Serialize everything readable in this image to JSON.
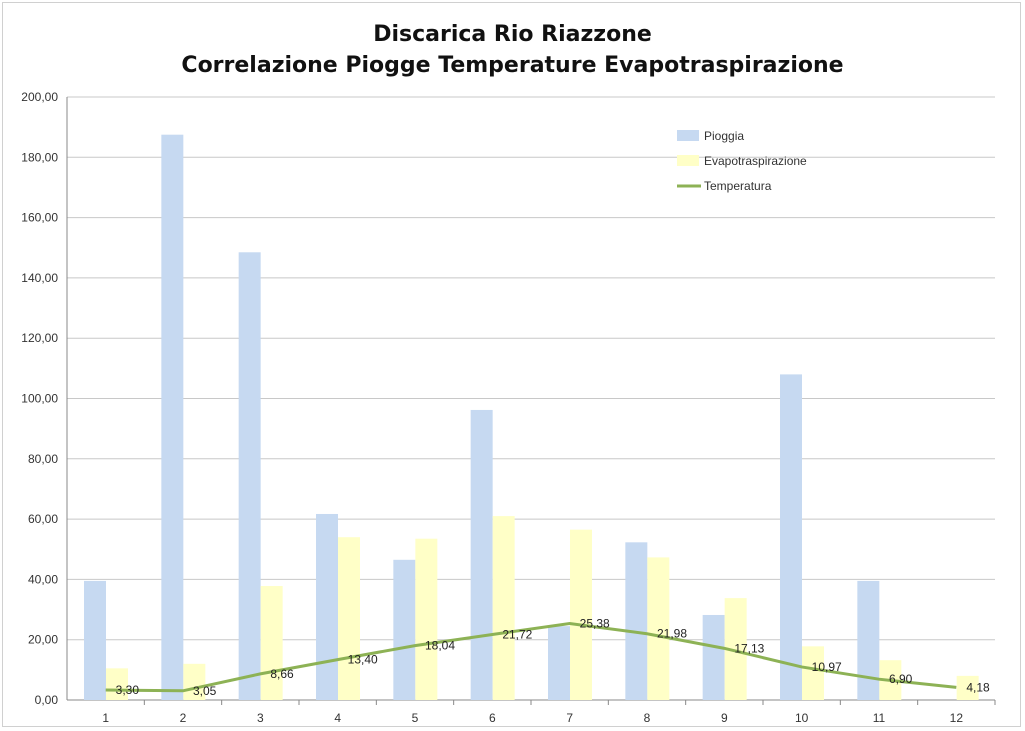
{
  "chart_data": {
    "type": "bar",
    "title_line1": "Discarica Rio Riazzone",
    "title_line2": "Correlazione Piogge Temperature Evapotraspirazione",
    "categories": [
      "1",
      "2",
      "3",
      "4",
      "5",
      "6",
      "7",
      "8",
      "9",
      "10",
      "11",
      "12"
    ],
    "ylim": [
      0,
      200
    ],
    "yticks": [
      "0,00",
      "20,00",
      "40,00",
      "60,00",
      "80,00",
      "100,00",
      "120,00",
      "140,00",
      "160,00",
      "180,00",
      "200,00"
    ],
    "grid": true,
    "legend_position": "top-right",
    "series": [
      {
        "name": "Pioggia",
        "type": "bar",
        "color": "#c6d9f1",
        "values": [
          39.5,
          187.5,
          148.5,
          61.7,
          46.5,
          96.2,
          24.5,
          52.3,
          28.2,
          108.0,
          39.5,
          0
        ]
      },
      {
        "name": "Evapotraspirazione",
        "type": "bar",
        "color": "#ffffc7",
        "values": [
          10.5,
          12.0,
          37.8,
          54.0,
          53.5,
          61.0,
          56.5,
          47.3,
          33.8,
          17.8,
          13.2,
          8.0
        ]
      },
      {
        "name": "Temperatura",
        "type": "line",
        "color": "#8db255",
        "values": [
          3.3,
          3.05,
          8.66,
          13.4,
          18.04,
          21.72,
          25.38,
          21.98,
          17.13,
          10.97,
          6.9,
          4.18
        ],
        "labels": [
          "3,30",
          "3,05",
          "8,66",
          "13,40",
          "18,04",
          "21,72",
          "25,38",
          "21,98",
          "17,13",
          "10,97",
          "6,90",
          "4,18"
        ]
      }
    ]
  }
}
